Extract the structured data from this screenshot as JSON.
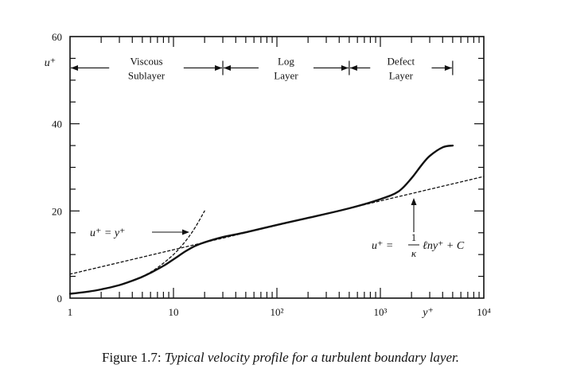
{
  "chart_data": {
    "type": "line",
    "x_scale": "log",
    "xlim": [
      1,
      10000
    ],
    "ylim": [
      0,
      60
    ],
    "x_ticks": [
      {
        "value": 1,
        "label": "1"
      },
      {
        "value": 10,
        "label": "10"
      },
      {
        "value": 100,
        "label": "10²"
      },
      {
        "value": 1000,
        "label": "10³"
      },
      {
        "value": 10000,
        "label": "10⁴"
      }
    ],
    "y_ticks": [
      {
        "value": 0,
        "label": "0"
      },
      {
        "value": 20,
        "label": "20"
      },
      {
        "value": 40,
        "label": "40"
      },
      {
        "value": 60,
        "label": "60"
      }
    ],
    "xlabel": "y⁺",
    "ylabel": "u⁺",
    "grid": false,
    "series": [
      {
        "style": "solid",
        "x": [
          1,
          1.5,
          2,
          3,
          4,
          5,
          6,
          8,
          10,
          13,
          16,
          20,
          30,
          50,
          100,
          200,
          500,
          1000,
          1500,
          2000,
          2500,
          3000,
          4000,
          5000
        ],
        "y": [
          1,
          1.5,
          2,
          3,
          4,
          4.9,
          5.8,
          7.4,
          8.9,
          10.7,
          11.9,
          12.8,
          14,
          15.1,
          16.8,
          18.4,
          20.6,
          22.7,
          24.5,
          27.5,
          30.5,
          32.6,
          34.6,
          35
        ]
      },
      {
        "style": "dashed",
        "x": [
          1,
          10,
          100,
          1000,
          10000
        ],
        "y": [
          5.5,
          11.1,
          16.7,
          22.3,
          27.9
        ]
      },
      {
        "style": "dashed",
        "x": [
          3,
          5,
          7,
          10,
          13,
          16,
          20
        ],
        "y": [
          3,
          5,
          7,
          10,
          13,
          16,
          20
        ]
      }
    ],
    "regions": [
      {
        "label_lines": [
          "Viscous",
          "Sublayer"
        ],
        "from": 1,
        "to": 30
      },
      {
        "label_lines": [
          "Log",
          "Layer"
        ],
        "from": 30,
        "to": 500
      },
      {
        "label_lines": [
          "Defect",
          "Layer"
        ],
        "from": 500,
        "to": 5000
      }
    ],
    "annotations": {
      "viscous_law": "u⁺ = y⁺",
      "log_law_lhs": "u⁺ =",
      "log_law_num": "1",
      "log_law_den": "κ",
      "log_law_rhs": "ℓny⁺ + C"
    }
  },
  "caption": {
    "prefix": "Figure 1.7:",
    "title": "Typical velocity profile for a turbulent boundary layer."
  }
}
